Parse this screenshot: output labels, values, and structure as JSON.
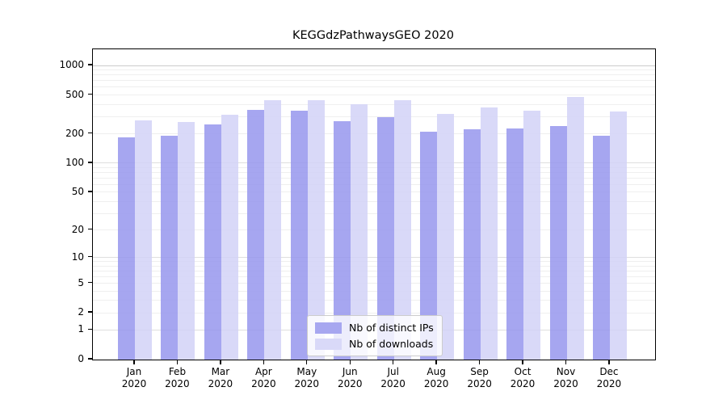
{
  "chart_data": {
    "type": "bar",
    "title": "KEGGdzPathwaysGEO 2020",
    "categories": [
      "Jan 2020",
      "Feb 2020",
      "Mar 2020",
      "Apr 2020",
      "May 2020",
      "Jun 2020",
      "Jul 2020",
      "Aug 2020",
      "Sep 2020",
      "Oct 2020",
      "Nov 2020",
      "Dec 2020"
    ],
    "series": [
      {
        "name": "Nb of distinct IPs",
        "color": "#a7a7f0",
        "values": [
          185,
          190,
          248,
          355,
          344,
          270,
          294,
          210,
          223,
          229,
          240,
          191
        ]
      },
      {
        "name": "Nb of downloads",
        "color": "#d9d9f8",
        "values": [
          276,
          265,
          315,
          440,
          446,
          404,
          442,
          318,
          372,
          343,
          480,
          338
        ]
      }
    ],
    "yscale": "log1p",
    "yticks": [
      1000,
      500,
      200,
      100,
      50,
      20,
      10,
      5,
      2,
      1,
      0
    ],
    "ylim": [
      0,
      1440
    ],
    "xlabel": "",
    "ylabel": "",
    "grid": true,
    "legend_position": "lower center"
  },
  "colors": {
    "axis": "#000000",
    "grid_minor": "#efefef",
    "grid_major": "#dedede",
    "grid_top": "#cccccc",
    "legend_border": "#cccccc"
  }
}
